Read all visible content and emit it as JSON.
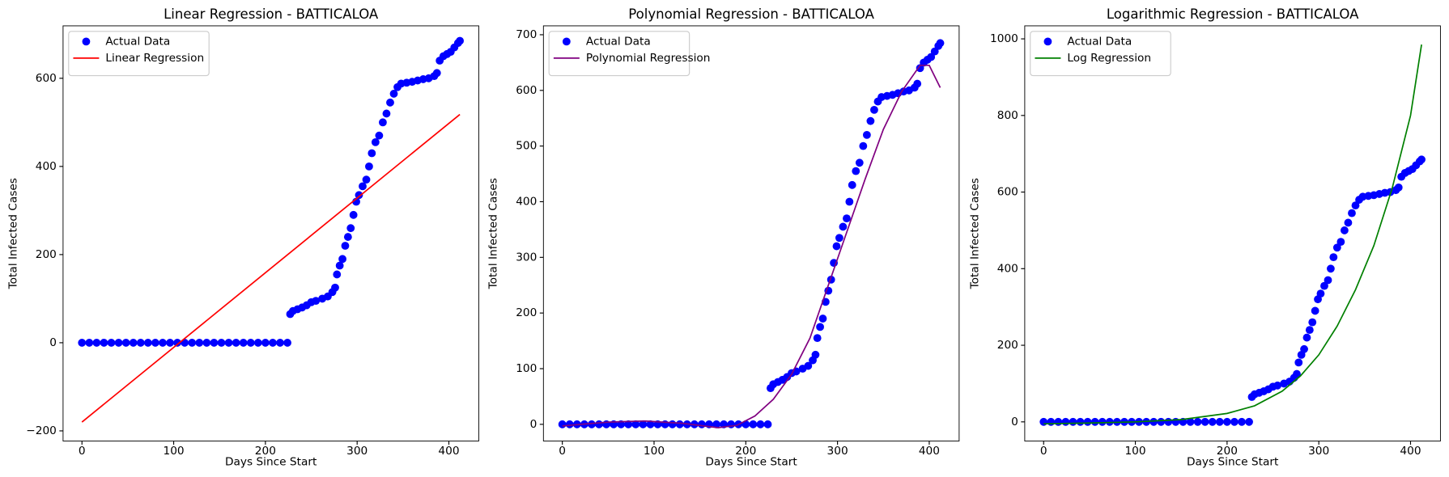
{
  "chart_data": [
    {
      "type": "scatter",
      "title": "Linear Regression - BATTICALOA",
      "xlabel": "Days Since Start",
      "ylabel": "Total Infected Cases",
      "xlim": [
        -20.6,
        432.6
      ],
      "ylim": [
        -223,
        719
      ],
      "xticks": [
        0,
        100,
        200,
        300,
        400
      ],
      "yticks": [
        {
          "value": -200,
          "label": "−200"
        },
        0,
        200,
        400,
        600
      ],
      "legend": "upper left",
      "series": [
        {
          "name": "Actual Data",
          "color": "#0000ff",
          "mode": "markers",
          "x": [
            0,
            8,
            16,
            24,
            32,
            40,
            48,
            56,
            64,
            72,
            80,
            88,
            96,
            104,
            112,
            120,
            128,
            136,
            144,
            152,
            160,
            168,
            176,
            184,
            192,
            200,
            208,
            216,
            224,
            227,
            230,
            235,
            240,
            245,
            250,
            255,
            262,
            268,
            273,
            276,
            278,
            281,
            284,
            287,
            290,
            293,
            296,
            299,
            302,
            306,
            310,
            313,
            316,
            320,
            324,
            328,
            332,
            336,
            340,
            344,
            348,
            354,
            360,
            366,
            372,
            378,
            384,
            387,
            390,
            394,
            398,
            402,
            406,
            410,
            412
          ],
          "values": [
            0,
            0,
            0,
            0,
            0,
            0,
            0,
            0,
            0,
            0,
            0,
            0,
            0,
            0,
            0,
            0,
            0,
            0,
            0,
            0,
            0,
            0,
            0,
            0,
            0,
            0,
            0,
            0,
            0,
            65,
            72,
            76,
            80,
            85,
            92,
            95,
            100,
            105,
            115,
            125,
            155,
            175,
            190,
            220,
            240,
            260,
            290,
            320,
            335,
            355,
            370,
            400,
            430,
            455,
            470,
            500,
            520,
            545,
            565,
            580,
            588,
            590,
            592,
            595,
            598,
            600,
            605,
            612,
            640,
            650,
            655,
            660,
            670,
            680,
            685
          ]
        },
        {
          "name": "Linear Regression",
          "color": "#ff0000",
          "mode": "line",
          "x": [
            0,
            412
          ],
          "values": [
            -180,
            518
          ]
        }
      ]
    },
    {
      "type": "scatter",
      "title": "Polynomial Regression - BATTICALOA",
      "xlabel": "Days Since Start",
      "ylabel": "Total Infected Cases",
      "xlim": [
        -20.6,
        432.6
      ],
      "ylim": [
        -30,
        716
      ],
      "xticks": [
        0,
        100,
        200,
        300,
        400
      ],
      "yticks": [
        0,
        100,
        200,
        300,
        400,
        500,
        600,
        700
      ],
      "legend": "upper left",
      "series": [
        {
          "name": "Actual Data",
          "color": "#0000ff",
          "mode": "markers",
          "x": [
            0,
            8,
            16,
            24,
            32,
            40,
            48,
            56,
            64,
            72,
            80,
            88,
            96,
            104,
            112,
            120,
            128,
            136,
            144,
            152,
            160,
            168,
            176,
            184,
            192,
            200,
            208,
            216,
            224,
            227,
            230,
            235,
            240,
            245,
            250,
            255,
            262,
            268,
            273,
            276,
            278,
            281,
            284,
            287,
            290,
            293,
            296,
            299,
            302,
            306,
            310,
            313,
            316,
            320,
            324,
            328,
            332,
            336,
            340,
            344,
            348,
            354,
            360,
            366,
            372,
            378,
            384,
            387,
            390,
            394,
            398,
            402,
            406,
            410,
            412
          ],
          "values": [
            0,
            0,
            0,
            0,
            0,
            0,
            0,
            0,
            0,
            0,
            0,
            0,
            0,
            0,
            0,
            0,
            0,
            0,
            0,
            0,
            0,
            0,
            0,
            0,
            0,
            0,
            0,
            0,
            0,
            65,
            72,
            76,
            80,
            85,
            92,
            95,
            100,
            105,
            115,
            125,
            155,
            175,
            190,
            220,
            240,
            260,
            290,
            320,
            335,
            355,
            370,
            400,
            430,
            455,
            470,
            500,
            520,
            545,
            565,
            580,
            588,
            590,
            592,
            595,
            598,
            600,
            605,
            612,
            640,
            650,
            655,
            660,
            670,
            680,
            685
          ]
        },
        {
          "name": "Polynomial Regression",
          "color": "#800080",
          "mode": "line",
          "x": [
            0,
            20,
            50,
            90,
            130,
            170,
            190,
            210,
            230,
            250,
            270,
            290,
            310,
            330,
            350,
            370,
            390,
            400,
            412
          ],
          "values": [
            -3,
            0,
            4,
            6,
            2,
            -6,
            -2,
            15,
            45,
            90,
            155,
            250,
            345,
            440,
            530,
            598,
            645,
            645,
            605
          ]
        }
      ]
    },
    {
      "type": "scatter",
      "title": "Logarithmic Regression - BATTICALOA",
      "xlabel": "Days Since Start",
      "ylabel": "Total Infected Cases",
      "xlim": [
        -20.6,
        432.6
      ],
      "ylim": [
        -50,
        1034
      ],
      "xticks": [
        0,
        100,
        200,
        300,
        400
      ],
      "yticks": [
        0,
        200,
        400,
        600,
        800,
        1000
      ],
      "legend": "upper left",
      "series": [
        {
          "name": "Actual Data",
          "color": "#0000ff",
          "mode": "markers",
          "x": [
            0,
            8,
            16,
            24,
            32,
            40,
            48,
            56,
            64,
            72,
            80,
            88,
            96,
            104,
            112,
            120,
            128,
            136,
            144,
            152,
            160,
            168,
            176,
            184,
            192,
            200,
            208,
            216,
            224,
            227,
            230,
            235,
            240,
            245,
            250,
            255,
            262,
            268,
            273,
            276,
            278,
            281,
            284,
            287,
            290,
            293,
            296,
            299,
            302,
            306,
            310,
            313,
            316,
            320,
            324,
            328,
            332,
            336,
            340,
            344,
            348,
            354,
            360,
            366,
            372,
            378,
            384,
            387,
            390,
            394,
            398,
            402,
            406,
            410,
            412
          ],
          "values": [
            0,
            0,
            0,
            0,
            0,
            0,
            0,
            0,
            0,
            0,
            0,
            0,
            0,
            0,
            0,
            0,
            0,
            0,
            0,
            0,
            0,
            0,
            0,
            0,
            0,
            0,
            0,
            0,
            0,
            65,
            72,
            76,
            80,
            85,
            92,
            95,
            100,
            105,
            115,
            125,
            155,
            175,
            190,
            220,
            240,
            260,
            290,
            320,
            335,
            355,
            370,
            400,
            430,
            455,
            470,
            500,
            520,
            545,
            565,
            580,
            588,
            590,
            592,
            595,
            598,
            600,
            605,
            612,
            640,
            650,
            655,
            660,
            670,
            680,
            685
          ]
        },
        {
          "name": "Log Regression",
          "color": "#008000",
          "mode": "line",
          "x": [
            0,
            50,
            100,
            150,
            200,
            230,
            260,
            280,
            300,
            320,
            340,
            360,
            380,
            400,
            412
          ],
          "values": [
            -5,
            -3,
            0,
            6,
            22,
            42,
            80,
            120,
            175,
            250,
            345,
            460,
            610,
            800,
            985
          ]
        }
      ]
    }
  ]
}
